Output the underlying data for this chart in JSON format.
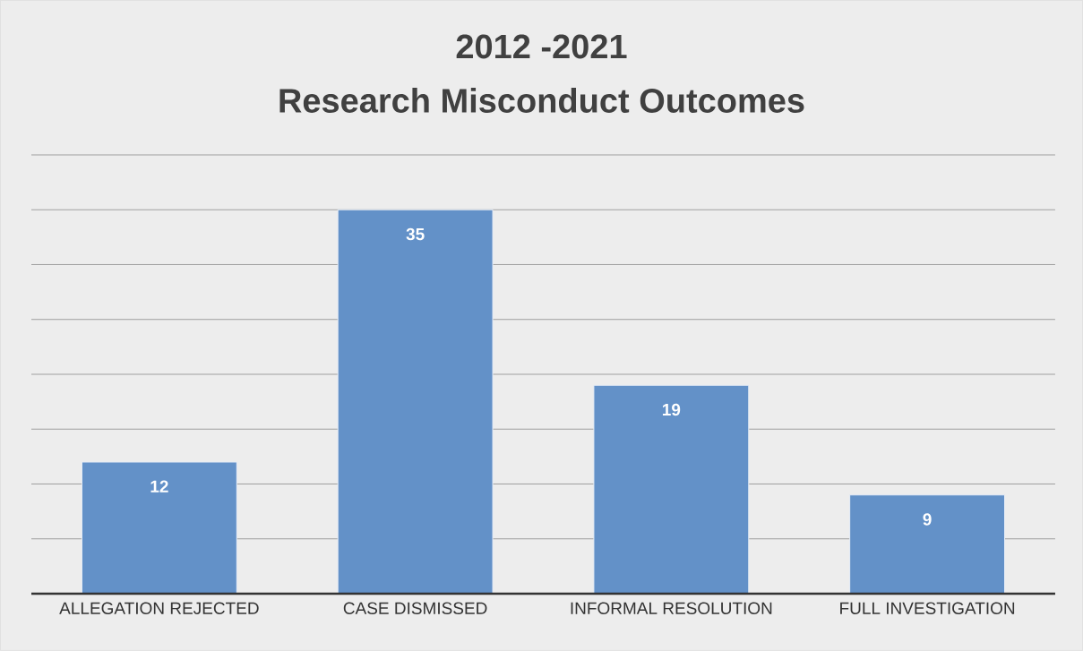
{
  "chart_data": {
    "type": "bar",
    "title": "2012 -2021",
    "subtitle": "Research Misconduct Outcomes",
    "categories": [
      "ALLEGATION REJECTED",
      "CASE DISMISSED",
      "INFORMAL RESOLUTION",
      "FULL INVESTIGATION"
    ],
    "values": [
      12,
      35,
      19,
      9
    ],
    "color": "#6391c8",
    "ylim": [
      0,
      40
    ],
    "yticks": [
      {
        "value": 0,
        "label": null
      },
      {
        "value": 5,
        "label": null
      },
      {
        "value": 10,
        "label": null
      },
      {
        "value": 15,
        "label": null
      },
      {
        "value": 20,
        "label": null
      },
      {
        "value": 25,
        "label": null
      },
      {
        "value": 30,
        "label": null
      },
      {
        "value": 35,
        "label": null
      },
      {
        "value": 40,
        "label": null
      }
    ],
    "grid": "y",
    "tick_labels": "x",
    "data_labels": true
  }
}
